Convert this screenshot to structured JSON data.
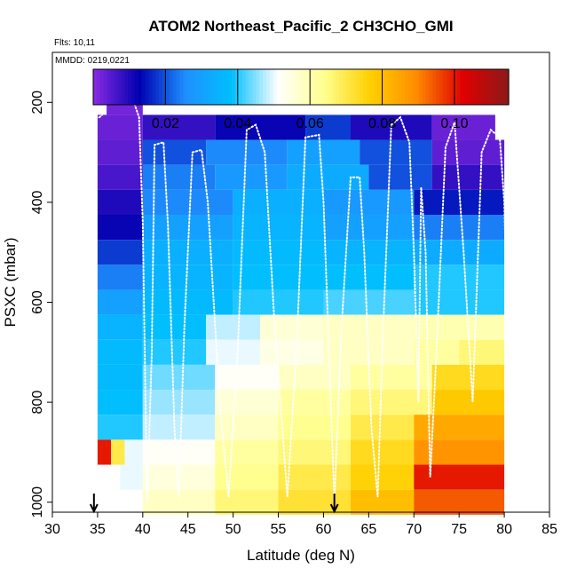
{
  "chart_data": {
    "type": "heatmap",
    "title": "ATOM2 Northeast_Pacific_2 CH3CHO_GMI",
    "flights_note": "Flts: 10,11",
    "dates_note": "MMDD: 0219,0221",
    "xlabel": "Latitude (deg N)",
    "ylabel": "PSXC (mbar)",
    "xlim": [
      30,
      85
    ],
    "ylim": [
      1020,
      100
    ],
    "x_ticks": [
      30,
      35,
      40,
      45,
      50,
      55,
      60,
      65,
      70,
      75,
      80,
      85
    ],
    "y_ticks": [
      200,
      400,
      600,
      800,
      1000
    ],
    "colorbar": {
      "range": [
        0,
        0.115
      ],
      "ticks": [
        0.02,
        0.04,
        0.06,
        0.08,
        0.1
      ],
      "tick_labels": [
        "0.02",
        "0.04",
        "0.06",
        "0.08",
        "0.10"
      ],
      "colors": [
        "#8a2be2",
        "#0000b0",
        "#1e90ff",
        "#00bfff",
        "#ffffff",
        "#ffff90",
        "#ffd000",
        "#ff8c00",
        "#e00000",
        "#8b1a1a"
      ]
    },
    "arrows_lat": [
      34.6,
      61.2
    ],
    "levels": [
      {
        "p": 200,
        "segments": [
          [
            36,
            40,
            0.002
          ]
        ]
      },
      {
        "p": 250,
        "segments": [
          [
            35,
            40,
            0.003
          ],
          [
            40,
            48,
            0.008
          ],
          [
            48,
            58,
            0.012
          ],
          [
            58,
            63,
            0.018
          ],
          [
            63,
            72,
            0.01
          ],
          [
            72,
            79,
            0.003
          ]
        ]
      },
      {
        "p": 300,
        "segments": [
          [
            35,
            40,
            0.004
          ],
          [
            40,
            47,
            0.02
          ],
          [
            47,
            56,
            0.025
          ],
          [
            56,
            64,
            0.03
          ],
          [
            64,
            72,
            0.02
          ],
          [
            72,
            80,
            0.004
          ]
        ]
      },
      {
        "p": 350,
        "segments": [
          [
            35,
            40,
            0.006
          ],
          [
            40,
            48,
            0.024
          ],
          [
            48,
            56,
            0.028
          ],
          [
            56,
            65,
            0.033
          ],
          [
            65,
            72,
            0.02
          ],
          [
            72,
            80,
            0.008
          ]
        ]
      },
      {
        "p": 400,
        "segments": [
          [
            35,
            40,
            0.01
          ],
          [
            40,
            50,
            0.025
          ],
          [
            50,
            60,
            0.034
          ],
          [
            60,
            70,
            0.028
          ],
          [
            70,
            80,
            0.015
          ]
        ]
      },
      {
        "p": 450,
        "segments": [
          [
            35,
            40,
            0.012
          ],
          [
            40,
            50,
            0.03
          ],
          [
            50,
            60,
            0.035
          ],
          [
            60,
            70,
            0.03
          ],
          [
            70,
            80,
            0.024
          ]
        ]
      },
      {
        "p": 500,
        "segments": [
          [
            35,
            40,
            0.018
          ],
          [
            40,
            50,
            0.034
          ],
          [
            50,
            60,
            0.037
          ],
          [
            60,
            70,
            0.035
          ],
          [
            70,
            80,
            0.033
          ]
        ]
      },
      {
        "p": 550,
        "segments": [
          [
            35,
            40,
            0.024
          ],
          [
            40,
            50,
            0.035
          ],
          [
            50,
            60,
            0.038
          ],
          [
            60,
            70,
            0.038
          ],
          [
            70,
            80,
            0.04
          ]
        ]
      },
      {
        "p": 600,
        "segments": [
          [
            35,
            40,
            0.03
          ],
          [
            40,
            50,
            0.037
          ],
          [
            50,
            60,
            0.04
          ],
          [
            60,
            70,
            0.042
          ],
          [
            70,
            80,
            0.04
          ]
        ]
      },
      {
        "p": 650,
        "segments": [
          [
            35,
            40,
            0.035
          ],
          [
            40,
            47,
            0.038
          ],
          [
            47,
            53,
            0.048
          ],
          [
            53,
            60,
            0.056
          ],
          [
            60,
            70,
            0.058
          ],
          [
            70,
            80,
            0.06
          ]
        ]
      },
      {
        "p": 700,
        "segments": [
          [
            35,
            40,
            0.037
          ],
          [
            40,
            47,
            0.04
          ],
          [
            47,
            53,
            0.05
          ],
          [
            53,
            60,
            0.054
          ],
          [
            60,
            70,
            0.058
          ],
          [
            70,
            75,
            0.062
          ],
          [
            75,
            80,
            0.066
          ]
        ]
      },
      {
        "p": 750,
        "segments": [
          [
            35,
            40,
            0.037
          ],
          [
            40,
            48,
            0.044
          ],
          [
            48,
            55,
            0.052
          ],
          [
            55,
            63,
            0.058
          ],
          [
            63,
            72,
            0.062
          ],
          [
            72,
            80,
            0.074
          ]
        ]
      },
      {
        "p": 800,
        "segments": [
          [
            35,
            40,
            0.038
          ],
          [
            40,
            48,
            0.046
          ],
          [
            48,
            55,
            0.056
          ],
          [
            55,
            63,
            0.062
          ],
          [
            63,
            72,
            0.066
          ],
          [
            72,
            80,
            0.078
          ]
        ]
      },
      {
        "p": 850,
        "segments": [
          [
            35,
            40,
            0.04
          ],
          [
            40,
            48,
            0.048
          ],
          [
            48,
            55,
            0.058
          ],
          [
            55,
            63,
            0.064
          ],
          [
            63,
            70,
            0.07
          ],
          [
            70,
            80,
            0.084
          ]
        ]
      },
      {
        "p": 900,
        "segments": [
          [
            35,
            36.5,
            0.1
          ],
          [
            36.5,
            38,
            0.07
          ],
          [
            38,
            40,
            0.05
          ],
          [
            40,
            48,
            0.052
          ],
          [
            48,
            55,
            0.062
          ],
          [
            55,
            63,
            0.066
          ],
          [
            63,
            70,
            0.074
          ],
          [
            70,
            80,
            0.088
          ]
        ]
      },
      {
        "p": 950,
        "segments": [
          [
            37.5,
            40,
            0.05
          ],
          [
            40,
            48,
            0.055
          ],
          [
            48,
            55,
            0.064
          ],
          [
            55,
            63,
            0.07
          ],
          [
            63,
            70,
            0.076
          ],
          [
            70,
            80,
            0.1
          ]
        ]
      },
      {
        "p": 1000,
        "segments": [
          [
            40,
            48,
            0.058
          ],
          [
            48,
            55,
            0.066
          ],
          [
            55,
            63,
            0.072
          ],
          [
            63,
            70,
            0.08
          ],
          [
            70,
            80,
            0.094
          ]
        ]
      }
    ],
    "flight_track": [
      [
        34.8,
        230
      ],
      [
        35.2,
        230
      ],
      [
        35.5,
        225
      ],
      [
        36,
        200
      ],
      [
        37,
        198
      ],
      [
        38,
        198
      ],
      [
        39,
        199
      ],
      [
        39.6,
        230
      ],
      [
        40,
        440
      ],
      [
        40.3,
        800
      ],
      [
        40.5,
        1000
      ],
      [
        41,
        700
      ],
      [
        41.3,
        285
      ],
      [
        42.3,
        280
      ],
      [
        42.8,
        450
      ],
      [
        43.5,
        850
      ],
      [
        44,
        990
      ],
      [
        44.6,
        650
      ],
      [
        45.5,
        300
      ],
      [
        46.5,
        295
      ],
      [
        47.2,
        400
      ],
      [
        48.5,
        800
      ],
      [
        49.5,
        990
      ],
      [
        50.5,
        700
      ],
      [
        51.5,
        255
      ],
      [
        52.5,
        245
      ],
      [
        53.5,
        300
      ],
      [
        54.5,
        620
      ],
      [
        56,
        990
      ],
      [
        57,
        700
      ],
      [
        58,
        270
      ],
      [
        59.5,
        265
      ],
      [
        60,
        400
      ],
      [
        60.8,
        800
      ],
      [
        61.2,
        1000
      ],
      [
        62,
        650
      ],
      [
        63,
        350
      ],
      [
        64,
        350
      ],
      [
        64.5,
        500
      ],
      [
        65.3,
        850
      ],
      [
        66,
        990
      ],
      [
        66.5,
        700
      ],
      [
        67.5,
        245
      ],
      [
        68.5,
        230
      ],
      [
        69.5,
        280
      ],
      [
        70,
        500
      ],
      [
        70.5,
        800
      ],
      [
        70.8,
        370
      ],
      [
        71.3,
        500
      ],
      [
        71.8,
        950
      ],
      [
        72.5,
        700
      ],
      [
        73.5,
        290
      ],
      [
        74.5,
        240
      ],
      [
        75.5,
        500
      ],
      [
        76.5,
        800
      ],
      [
        77.5,
        300
      ],
      [
        78.5,
        255
      ],
      [
        79.5,
        270
      ],
      [
        80,
        400
      ],
      [
        80.4,
        700
      ]
    ]
  }
}
